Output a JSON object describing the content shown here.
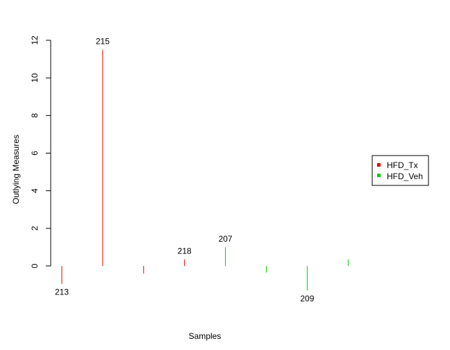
{
  "chart_data": {
    "type": "bar",
    "title": "",
    "xlabel": "Samples",
    "ylabel": "Outlying Measures",
    "ylim": [
      -1.4,
      12
    ],
    "yticks": [
      0,
      2,
      4,
      6,
      8,
      10,
      12
    ],
    "grid": false,
    "legend_position": "right",
    "series": [
      {
        "name": "HFD_Tx",
        "color": "#DF0000"
      },
      {
        "name": "HFD_Veh",
        "color": "#00CD00"
      }
    ],
    "samples": [
      {
        "value": -0.95,
        "group": "HFD_Tx",
        "label": "213"
      },
      {
        "value": 11.5,
        "group": "HFD_Tx",
        "label": "215"
      },
      {
        "value": -0.4,
        "group": "HFD_Tx",
        "label": ""
      },
      {
        "value": 0.35,
        "group": "HFD_Tx",
        "label": "218"
      },
      {
        "value": 1.0,
        "group": "HFD_Veh",
        "label": "207"
      },
      {
        "value": -0.35,
        "group": "HFD_Veh",
        "label": ""
      },
      {
        "value": -1.3,
        "group": "HFD_Veh",
        "label": "209"
      },
      {
        "value": 0.35,
        "group": "HFD_Veh",
        "label": ""
      }
    ]
  }
}
